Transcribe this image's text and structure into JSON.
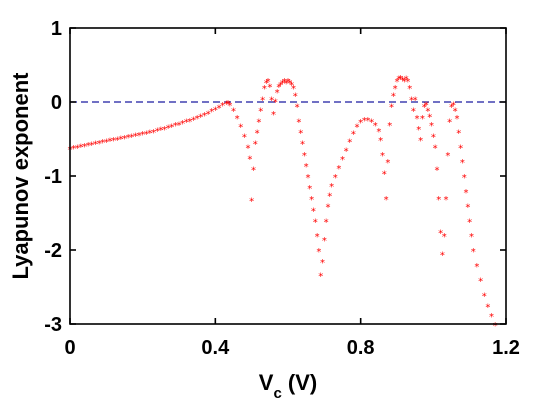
{
  "chart_data": {
    "type": "scatter",
    "title": "",
    "xlabel": {
      "main": "V",
      "sub": "c",
      "unit": " (V)"
    },
    "ylabel": "Lyapunov exponent",
    "xlim": [
      0,
      1.2
    ],
    "ylim": [
      -3,
      1
    ],
    "xticks": [
      0,
      0.4,
      0.8,
      1.2
    ],
    "xtick_labels": [
      "0",
      "0.4",
      "0.8",
      "1.2"
    ],
    "yticks": [
      1,
      0,
      -1,
      -2,
      -3
    ],
    "ytick_labels": [
      "1",
      "0",
      "-1",
      "-2",
      "-3"
    ],
    "reference_line": {
      "y": 0,
      "style": "dashed",
      "color": "#1a1aa0"
    },
    "marker": {
      "glyph": "*",
      "color": "#ff0000"
    },
    "grid": false,
    "series": [
      {
        "values": [
          [
            0.0,
            -0.62
          ],
          [
            0.01,
            -0.61
          ],
          [
            0.02,
            -0.6
          ],
          [
            0.03,
            -0.59
          ],
          [
            0.04,
            -0.58
          ],
          [
            0.05,
            -0.57
          ],
          [
            0.06,
            -0.56
          ],
          [
            0.07,
            -0.55
          ],
          [
            0.08,
            -0.54
          ],
          [
            0.09,
            -0.53
          ],
          [
            0.1,
            -0.52
          ],
          [
            0.11,
            -0.51
          ],
          [
            0.12,
            -0.5
          ],
          [
            0.13,
            -0.49
          ],
          [
            0.14,
            -0.48
          ],
          [
            0.15,
            -0.47
          ],
          [
            0.16,
            -0.46
          ],
          [
            0.17,
            -0.45
          ],
          [
            0.18,
            -0.44
          ],
          [
            0.19,
            -0.43
          ],
          [
            0.2,
            -0.42
          ],
          [
            0.21,
            -0.41
          ],
          [
            0.22,
            -0.4
          ],
          [
            0.23,
            -0.39
          ],
          [
            0.24,
            -0.37
          ],
          [
            0.25,
            -0.36
          ],
          [
            0.26,
            -0.35
          ],
          [
            0.27,
            -0.33
          ],
          [
            0.28,
            -0.32
          ],
          [
            0.29,
            -0.3
          ],
          [
            0.3,
            -0.29
          ],
          [
            0.31,
            -0.27
          ],
          [
            0.32,
            -0.25
          ],
          [
            0.33,
            -0.24
          ],
          [
            0.34,
            -0.22
          ],
          [
            0.35,
            -0.2
          ],
          [
            0.36,
            -0.18
          ],
          [
            0.37,
            -0.16
          ],
          [
            0.38,
            -0.14
          ],
          [
            0.39,
            -0.11
          ],
          [
            0.4,
            -0.09
          ],
          [
            0.41,
            -0.06
          ],
          [
            0.42,
            -0.03
          ],
          [
            0.43,
            -0.01
          ],
          [
            0.435,
            0.0
          ],
          [
            0.44,
            -0.03
          ],
          [
            0.45,
            -0.1
          ],
          [
            0.46,
            -0.2
          ],
          [
            0.47,
            -0.32
          ],
          [
            0.48,
            -0.45
          ],
          [
            0.49,
            -0.6
          ],
          [
            0.495,
            -0.75
          ],
          [
            0.5,
            -1.32
          ],
          [
            0.505,
            -0.9
          ],
          [
            0.51,
            -0.55
          ],
          [
            0.515,
            -0.4
          ],
          [
            0.52,
            -0.25
          ],
          [
            0.525,
            -0.1
          ],
          [
            0.53,
            0.05
          ],
          [
            0.535,
            0.2
          ],
          [
            0.54,
            0.28
          ],
          [
            0.545,
            0.3
          ],
          [
            0.55,
            0.22
          ],
          [
            0.555,
            0.05
          ],
          [
            0.56,
            -0.15
          ],
          [
            0.565,
            0.02
          ],
          [
            0.57,
            0.15
          ],
          [
            0.575,
            0.22
          ],
          [
            0.58,
            0.25
          ],
          [
            0.585,
            0.28
          ],
          [
            0.59,
            0.3
          ],
          [
            0.595,
            0.27
          ],
          [
            0.6,
            0.3
          ],
          [
            0.605,
            0.28
          ],
          [
            0.61,
            0.25
          ],
          [
            0.615,
            0.2
          ],
          [
            0.62,
            0.1
          ],
          [
            0.625,
            -0.05
          ],
          [
            0.63,
            -0.25
          ],
          [
            0.635,
            -0.4
          ],
          [
            0.64,
            -0.55
          ],
          [
            0.645,
            -0.7
          ],
          [
            0.65,
            -0.85
          ],
          [
            0.655,
            -1.0
          ],
          [
            0.66,
            -1.15
          ],
          [
            0.665,
            -1.3
          ],
          [
            0.67,
            -1.45
          ],
          [
            0.675,
            -1.6
          ],
          [
            0.68,
            -1.8
          ],
          [
            0.685,
            -2.0
          ],
          [
            0.69,
            -2.33
          ],
          [
            0.695,
            -2.15
          ],
          [
            0.7,
            -1.85
          ],
          [
            0.705,
            -1.6
          ],
          [
            0.71,
            -1.4
          ],
          [
            0.715,
            -1.25
          ],
          [
            0.72,
            -1.12
          ],
          [
            0.73,
            -1.0
          ],
          [
            0.74,
            -0.88
          ],
          [
            0.75,
            -0.76
          ],
          [
            0.76,
            -0.64
          ],
          [
            0.77,
            -0.52
          ],
          [
            0.78,
            -0.41
          ],
          [
            0.79,
            -0.32
          ],
          [
            0.8,
            -0.26
          ],
          [
            0.81,
            -0.23
          ],
          [
            0.82,
            -0.23
          ],
          [
            0.83,
            -0.25
          ],
          [
            0.84,
            -0.3
          ],
          [
            0.85,
            -0.38
          ],
          [
            0.855,
            -0.5
          ],
          [
            0.86,
            -0.7
          ],
          [
            0.865,
            -0.95
          ],
          [
            0.87,
            -1.3
          ],
          [
            0.875,
            -0.8
          ],
          [
            0.88,
            -0.3
          ],
          [
            0.885,
            -0.05
          ],
          [
            0.89,
            0.1
          ],
          [
            0.895,
            0.2
          ],
          [
            0.9,
            0.3
          ],
          [
            0.905,
            0.33
          ],
          [
            0.91,
            0.34
          ],
          [
            0.915,
            0.32
          ],
          [
            0.92,
            0.3
          ],
          [
            0.925,
            0.33
          ],
          [
            0.93,
            0.3
          ],
          [
            0.935,
            0.2
          ],
          [
            0.94,
            0.05
          ],
          [
            0.945,
            -0.1
          ],
          [
            0.95,
            0.05
          ],
          [
            0.955,
            -0.2
          ],
          [
            0.96,
            -0.35
          ],
          [
            0.965,
            -0.5
          ],
          [
            0.97,
            -0.2
          ],
          [
            0.975,
            -0.05
          ],
          [
            0.98,
            -0.02
          ],
          [
            0.985,
            -0.1
          ],
          [
            0.99,
            -0.18
          ],
          [
            0.995,
            -0.3
          ],
          [
            1.0,
            -0.45
          ],
          [
            1.005,
            -0.6
          ],
          [
            1.01,
            -0.9
          ],
          [
            1.015,
            -1.3
          ],
          [
            1.02,
            -1.75
          ],
          [
            1.025,
            -2.05
          ],
          [
            1.03,
            -1.8
          ],
          [
            1.035,
            -1.3
          ],
          [
            1.04,
            -0.7
          ],
          [
            1.045,
            -0.25
          ],
          [
            1.05,
            -0.05
          ],
          [
            1.055,
            -0.02
          ],
          [
            1.06,
            -0.1
          ],
          [
            1.065,
            -0.2
          ],
          [
            1.07,
            -0.4
          ],
          [
            1.075,
            -0.6
          ],
          [
            1.08,
            -0.8
          ],
          [
            1.085,
            -1.0
          ],
          [
            1.09,
            -1.2
          ],
          [
            1.095,
            -1.4
          ],
          [
            1.1,
            -1.6
          ],
          [
            1.105,
            -1.8
          ],
          [
            1.11,
            -2.0
          ],
          [
            1.12,
            -2.2
          ],
          [
            1.13,
            -2.4
          ],
          [
            1.14,
            -2.6
          ],
          [
            1.15,
            -2.75
          ],
          [
            1.16,
            -2.88
          ],
          [
            1.17,
            -3.0
          ]
        ]
      }
    ]
  }
}
